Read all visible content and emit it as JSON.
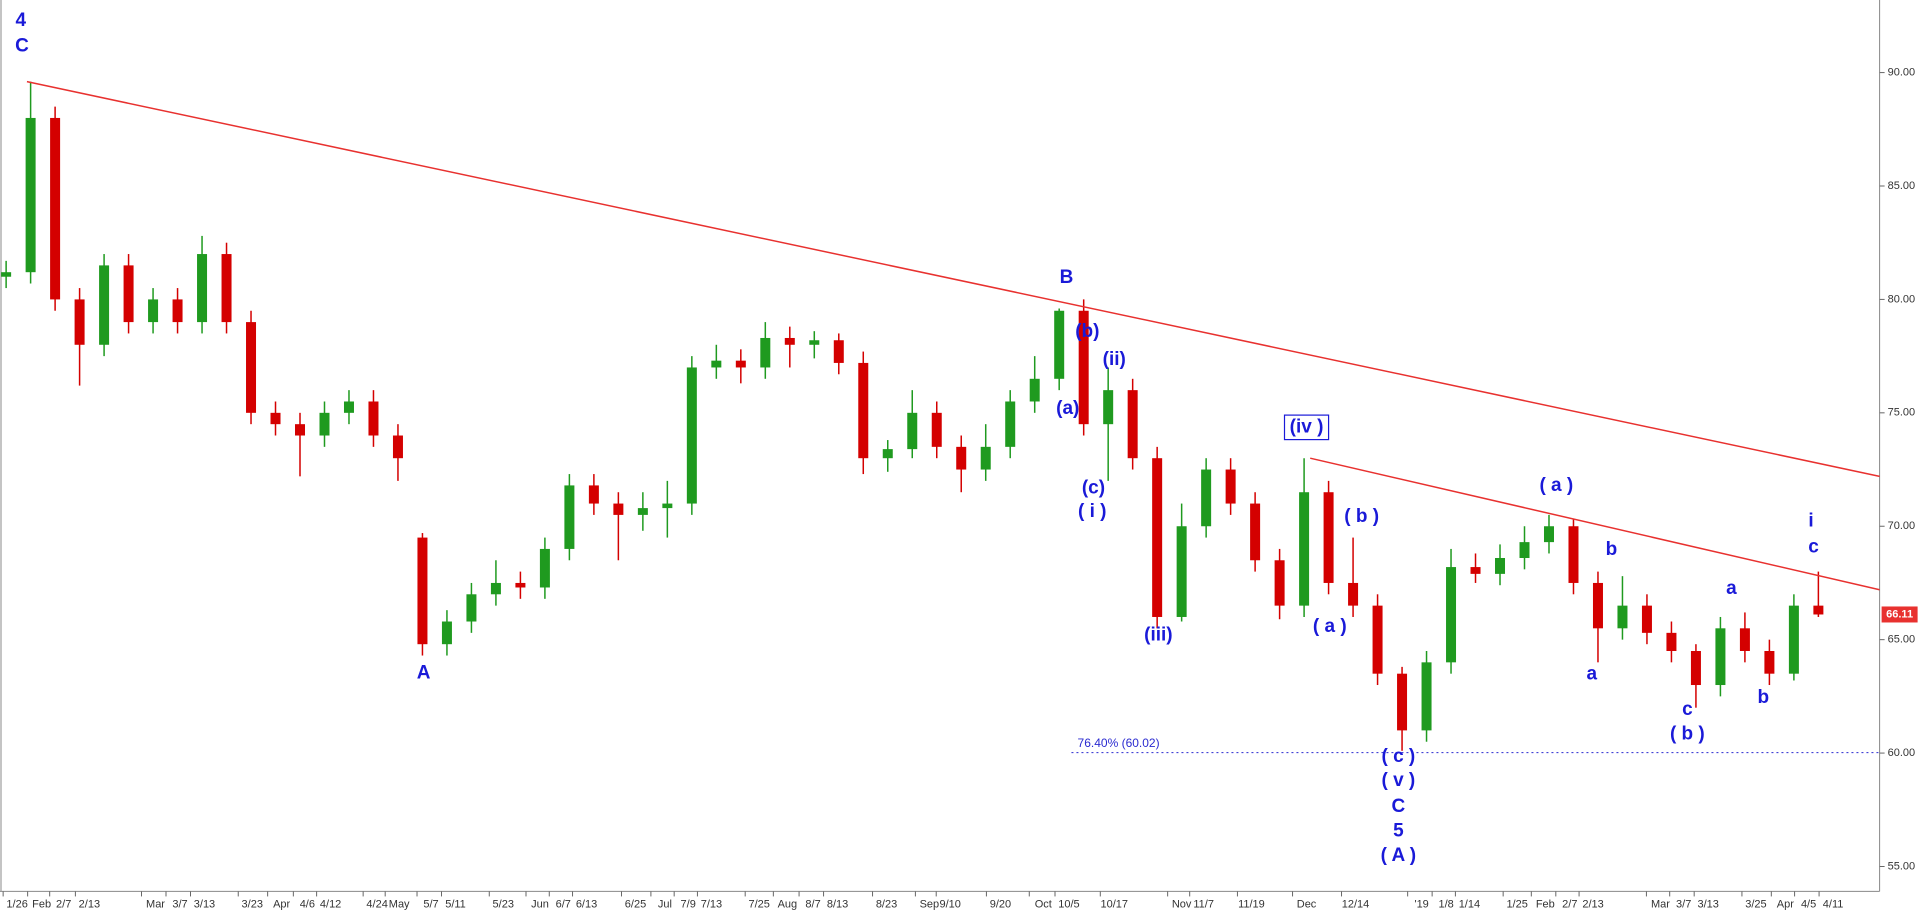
{
  "chart_data": {
    "type": "candlestick",
    "open": [
      81.0,
      81.2,
      88,
      80,
      78,
      81.5,
      79,
      80,
      79,
      82,
      79,
      75,
      74.5,
      74,
      75,
      75.5,
      74,
      69.5,
      64.8,
      65.8,
      67,
      67.5,
      67.3,
      69,
      71.8,
      71,
      70.5,
      70.8,
      71,
      77,
      77.3,
      77,
      78.3,
      78,
      78.2,
      77.2,
      73,
      73.4,
      75,
      73.5,
      72.5,
      73.5,
      75.5,
      76.5,
      79.5,
      74.5,
      76,
      73,
      66,
      70,
      72.5,
      71,
      68.5,
      66.5,
      71.5,
      67.5,
      66.5,
      63.5,
      61,
      64,
      68.2,
      67.9,
      68.6,
      69.3,
      70,
      67.5,
      65.5,
      66.5,
      65.3,
      64.5,
      63,
      65.5,
      64.5,
      63.5,
      66.5
    ],
    "high": [
      81.7,
      89.6,
      88.5,
      80.5,
      82,
      82,
      80.5,
      80.5,
      82.8,
      82.5,
      79.5,
      75.5,
      75,
      75.5,
      76,
      76,
      74.5,
      69.7,
      66.3,
      67.5,
      68.5,
      68,
      69.5,
      72.3,
      72.3,
      71.5,
      71.5,
      72,
      77.5,
      78,
      77.8,
      79,
      78.8,
      78.6,
      78.5,
      77.7,
      73.8,
      76,
      75.5,
      74,
      74.5,
      76,
      77.5,
      79.6,
      80,
      77,
      76.5,
      73.5,
      71,
      73,
      73,
      71.5,
      69,
      73,
      72,
      69.5,
      67,
      63.8,
      64.5,
      69,
      68.8,
      69.2,
      70,
      70.5,
      70.3,
      68,
      67.8,
      67,
      65.8,
      64.8,
      66,
      66.2,
      65,
      67,
      68
    ],
    "low": [
      80.5,
      80.7,
      79.5,
      76.2,
      77.5,
      78.5,
      78.5,
      78.5,
      78.5,
      78.5,
      74.5,
      74,
      72.2,
      73.5,
      74.5,
      73.5,
      72,
      64.3,
      64.3,
      65.3,
      66.5,
      66.8,
      66.8,
      68.5,
      70.5,
      68.5,
      69.8,
      69.5,
      70.5,
      76.5,
      76.3,
      76.5,
      77,
      77.4,
      76.7,
      72.3,
      72.4,
      73,
      73,
      71.5,
      72,
      73,
      75,
      76,
      74,
      72,
      72.5,
      65.5,
      65.8,
      69.5,
      70.5,
      68,
      65.9,
      66,
      67,
      66,
      63,
      60.1,
      60.5,
      63.5,
      67.5,
      67.4,
      68.1,
      68.8,
      67,
      64,
      65,
      64.8,
      64,
      62,
      62.5,
      64,
      63,
      63.2,
      66
    ],
    "close": [
      81.2,
      88,
      80,
      78,
      81.5,
      79,
      80,
      79,
      82,
      79,
      75,
      74.5,
      74,
      75,
      75.5,
      74,
      73,
      64.8,
      65.8,
      67,
      67.5,
      67.3,
      69,
      71.8,
      71,
      70.5,
      70.8,
      71,
      77,
      77.3,
      77,
      78.3,
      78,
      78.2,
      77.2,
      73,
      73.4,
      75,
      73.5,
      72.5,
      73.5,
      75.5,
      76.5,
      79.5,
      74.5,
      76,
      73,
      66,
      70,
      72.5,
      71,
      68.5,
      66.5,
      71.5,
      67.5,
      66.5,
      63.5,
      61,
      64,
      68.2,
      67.9,
      68.6,
      69.3,
      70,
      67.5,
      65.5,
      66.5,
      65.3,
      64.5,
      63,
      65.5,
      64.5,
      63.5,
      66.5,
      66.11
    ],
    "up_color": "#1f9a1f",
    "down_color": "#d40000",
    "ylim": [
      53.9,
      93.2
    ],
    "yticks": [
      {
        "value": 55,
        "label": "55.00"
      },
      {
        "value": 60,
        "label": "60.00"
      },
      {
        "value": 65,
        "label": "65.00"
      },
      {
        "value": 70,
        "label": "70.00"
      },
      {
        "value": 75,
        "label": "75.00"
      },
      {
        "value": 80,
        "label": "80.00"
      },
      {
        "value": 85,
        "label": "85.00"
      },
      {
        "value": 90,
        "label": "90.00"
      }
    ],
    "date_labels": [
      "1/26",
      "Feb",
      "2/7",
      "2/13",
      "Mar",
      "3/7",
      "3/13",
      "3/23",
      "Apr",
      "4/6",
      "4/12",
      "4/24",
      "May",
      "5/7",
      "5/11",
      "5/23",
      "Jun",
      "6/7",
      "6/13",
      "6/25",
      "Jul",
      "7/9",
      "7/13",
      "7/25",
      "Aug",
      "8/7",
      "8/13",
      "8/23",
      "Sep",
      "9/10",
      "9/20",
      "Oct",
      "10/5",
      "10/17",
      "Nov",
      "11/7",
      "11/19",
      "Dec",
      "12/14",
      "'19",
      "1/8",
      "1/14",
      "1/25",
      "Feb",
      "2/7",
      "2/13",
      "Mar",
      "3/7",
      "3/13",
      "3/25",
      "Apr",
      "4/5",
      "4/11"
    ],
    "trendlines": [
      {
        "start": 89.6,
        "end": 72.2,
        "color": "#e8312f"
      },
      {
        "start": 73,
        "end": 67.2,
        "color": "#e8312f"
      }
    ],
    "fib_level": 60.02,
    "fib_label": "76.40% (60.02)",
    "annotations": [
      "4",
      "C",
      "B",
      "(b)",
      "(ii)",
      "(a)",
      "(c)",
      "( i )",
      "(iii)",
      "A",
      "(iv )",
      "( b )",
      "( a )",
      "( c )",
      "( v )",
      "C",
      "5",
      "( A )",
      "( a )",
      "b",
      "a",
      "c",
      "( b )",
      "a",
      "b",
      "i",
      "c"
    ],
    "annotation_color": "#1a1ad8"
  }
}
